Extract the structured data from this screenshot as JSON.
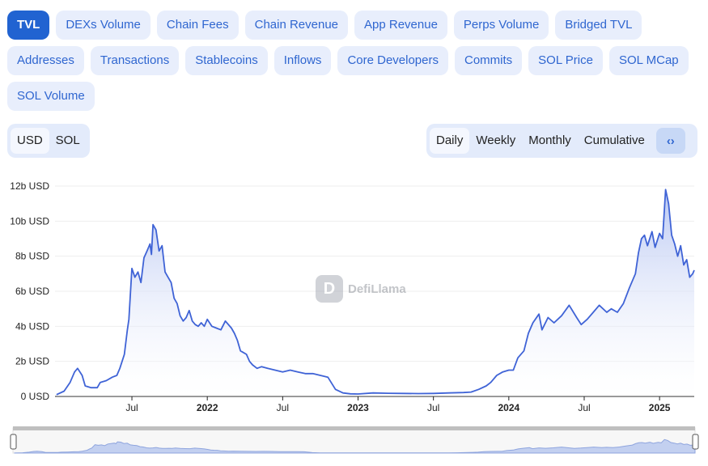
{
  "metric_tabs": {
    "row1": [
      "TVL",
      "DEXs Volume",
      "Chain Fees",
      "Chain Revenue",
      "App Revenue",
      "Perps Volume",
      "Bridged TVL"
    ],
    "row2": [
      "Addresses",
      "Transactions",
      "Stablecoins",
      "Inflows",
      "Core Developers",
      "Commits",
      "SOL Price",
      "SOL MCap"
    ],
    "row3": [
      "SOL Volume"
    ],
    "active": "TVL"
  },
  "denomination": {
    "options": [
      "USD",
      "SOL"
    ],
    "selected": "USD"
  },
  "period": {
    "options": [
      "Daily",
      "Weekly",
      "Monthly",
      "Cumulative"
    ],
    "selected": "Daily",
    "embed_icon": "code-icon"
  },
  "watermark": {
    "text": "DefiLlama",
    "icon": "llama-logo"
  },
  "colors": {
    "accent": "#2163d1",
    "line": "#3f63d6",
    "area_top": "#b6c5f2",
    "tab_bg": "#e8eefc"
  },
  "chart_data": {
    "type": "area",
    "title": "",
    "xlabel": "",
    "ylabel": "",
    "ylim": [
      0,
      12
    ],
    "yticks": [
      "0 USD",
      "2b USD",
      "4b USD",
      "6b USD",
      "8b USD",
      "10b USD",
      "12b USD"
    ],
    "xticks": [
      {
        "label": "Jul",
        "x": 2021.5,
        "bold": false
      },
      {
        "label": "2022",
        "x": 2022.0,
        "bold": true
      },
      {
        "label": "Jul",
        "x": 2022.5,
        "bold": false
      },
      {
        "label": "2023",
        "x": 2023.0,
        "bold": true
      },
      {
        "label": "Jul",
        "x": 2023.5,
        "bold": false
      },
      {
        "label": "2024",
        "x": 2024.0,
        "bold": true
      },
      {
        "label": "Jul",
        "x": 2024.5,
        "bold": false
      },
      {
        "label": "2025",
        "x": 2025.0,
        "bold": true
      }
    ],
    "xlim": [
      2020.99,
      2025.23
    ],
    "grid": true,
    "series": [
      {
        "unit": "billions USD",
        "points": [
          [
            2021.0,
            0.1
          ],
          [
            2021.05,
            0.3
          ],
          [
            2021.09,
            0.8
          ],
          [
            2021.12,
            1.4
          ],
          [
            2021.14,
            1.6
          ],
          [
            2021.17,
            1.2
          ],
          [
            2021.19,
            0.6
          ],
          [
            2021.23,
            0.5
          ],
          [
            2021.27,
            0.5
          ],
          [
            2021.29,
            0.8
          ],
          [
            2021.33,
            0.9
          ],
          [
            2021.37,
            1.1
          ],
          [
            2021.4,
            1.2
          ],
          [
            2021.42,
            1.6
          ],
          [
            2021.45,
            2.4
          ],
          [
            2021.47,
            3.8
          ],
          [
            2021.48,
            4.4
          ],
          [
            2021.5,
            7.3
          ],
          [
            2021.52,
            6.8
          ],
          [
            2021.54,
            7.1
          ],
          [
            2021.56,
            6.5
          ],
          [
            2021.58,
            7.9
          ],
          [
            2021.6,
            8.3
          ],
          [
            2021.62,
            8.7
          ],
          [
            2021.63,
            8.1
          ],
          [
            2021.64,
            9.8
          ],
          [
            2021.66,
            9.5
          ],
          [
            2021.68,
            8.3
          ],
          [
            2021.7,
            8.6
          ],
          [
            2021.72,
            7.1
          ],
          [
            2021.74,
            6.8
          ],
          [
            2021.76,
            6.5
          ],
          [
            2021.78,
            5.6
          ],
          [
            2021.8,
            5.3
          ],
          [
            2021.82,
            4.6
          ],
          [
            2021.84,
            4.3
          ],
          [
            2021.86,
            4.5
          ],
          [
            2021.88,
            4.9
          ],
          [
            2021.9,
            4.3
          ],
          [
            2021.92,
            4.1
          ],
          [
            2021.94,
            4.0
          ],
          [
            2021.96,
            4.2
          ],
          [
            2021.98,
            4.0
          ],
          [
            2022.0,
            4.4
          ],
          [
            2022.03,
            4.0
          ],
          [
            2022.06,
            3.9
          ],
          [
            2022.09,
            3.8
          ],
          [
            2022.12,
            4.3
          ],
          [
            2022.16,
            3.9
          ],
          [
            2022.18,
            3.6
          ],
          [
            2022.2,
            3.2
          ],
          [
            2022.22,
            2.6
          ],
          [
            2022.24,
            2.5
          ],
          [
            2022.26,
            2.4
          ],
          [
            2022.28,
            2.0
          ],
          [
            2022.3,
            1.8
          ],
          [
            2022.33,
            1.6
          ],
          [
            2022.36,
            1.7
          ],
          [
            2022.4,
            1.6
          ],
          [
            2022.45,
            1.5
          ],
          [
            2022.5,
            1.4
          ],
          [
            2022.55,
            1.5
          ],
          [
            2022.6,
            1.4
          ],
          [
            2022.65,
            1.3
          ],
          [
            2022.7,
            1.3
          ],
          [
            2022.75,
            1.2
          ],
          [
            2022.8,
            1.1
          ],
          [
            2022.85,
            0.4
          ],
          [
            2022.9,
            0.2
          ],
          [
            2022.95,
            0.15
          ],
          [
            2023.0,
            0.14
          ],
          [
            2023.1,
            0.2
          ],
          [
            2023.2,
            0.18
          ],
          [
            2023.3,
            0.17
          ],
          [
            2023.4,
            0.16
          ],
          [
            2023.5,
            0.17
          ],
          [
            2023.6,
            0.2
          ],
          [
            2023.7,
            0.22
          ],
          [
            2023.75,
            0.25
          ],
          [
            2023.8,
            0.4
          ],
          [
            2023.85,
            0.6
          ],
          [
            2023.88,
            0.8
          ],
          [
            2023.92,
            1.2
          ],
          [
            2023.96,
            1.4
          ],
          [
            2024.0,
            1.5
          ],
          [
            2024.03,
            1.5
          ],
          [
            2024.06,
            2.2
          ],
          [
            2024.1,
            2.6
          ],
          [
            2024.13,
            3.6
          ],
          [
            2024.16,
            4.2
          ],
          [
            2024.2,
            4.7
          ],
          [
            2024.22,
            3.8
          ],
          [
            2024.26,
            4.5
          ],
          [
            2024.3,
            4.2
          ],
          [
            2024.35,
            4.6
          ],
          [
            2024.4,
            5.2
          ],
          [
            2024.45,
            4.5
          ],
          [
            2024.48,
            4.1
          ],
          [
            2024.52,
            4.4
          ],
          [
            2024.56,
            4.8
          ],
          [
            2024.6,
            5.2
          ],
          [
            2024.65,
            4.8
          ],
          [
            2024.68,
            5.0
          ],
          [
            2024.72,
            4.8
          ],
          [
            2024.76,
            5.3
          ],
          [
            2024.8,
            6.2
          ],
          [
            2024.84,
            7.0
          ],
          [
            2024.86,
            8.2
          ],
          [
            2024.88,
            9.0
          ],
          [
            2024.9,
            9.2
          ],
          [
            2024.92,
            8.6
          ],
          [
            2024.95,
            9.4
          ],
          [
            2024.97,
            8.5
          ],
          [
            2025.0,
            9.3
          ],
          [
            2025.02,
            9.0
          ],
          [
            2025.04,
            11.8
          ],
          [
            2025.06,
            11.0
          ],
          [
            2025.08,
            9.2
          ],
          [
            2025.1,
            8.7
          ],
          [
            2025.12,
            8.0
          ],
          [
            2025.14,
            8.6
          ],
          [
            2025.16,
            7.5
          ],
          [
            2025.18,
            7.8
          ],
          [
            2025.2,
            6.8
          ],
          [
            2025.22,
            7.0
          ],
          [
            2025.23,
            7.2
          ]
        ]
      }
    ]
  }
}
